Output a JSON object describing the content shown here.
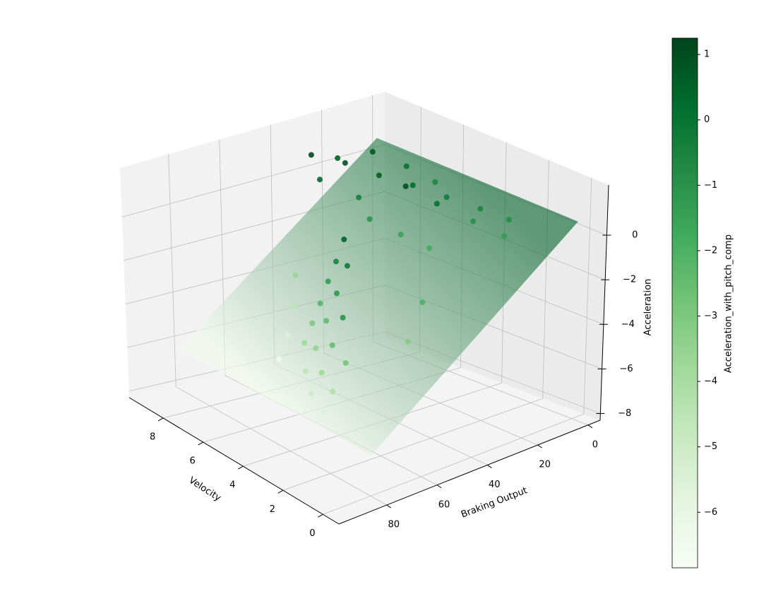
{
  "chart_data": {
    "type": "scatter3d",
    "xlabel": "Velocity",
    "ylabel": "Braking Output",
    "zlabel": "Acceleration",
    "x": [
      8,
      7,
      6,
      5,
      4,
      3,
      8.5,
      7.5,
      6.5,
      5.5,
      4.5,
      3.5,
      2.5,
      9,
      8,
      7,
      6,
      5,
      4,
      9.2,
      6.5,
      6.4,
      6.3,
      6.2,
      6.1,
      6.0,
      5.5,
      5.4,
      5.3,
      5.2,
      5.1,
      4.5,
      4.4,
      4.3,
      4.2,
      3.5,
      3.4,
      3.3,
      7.5,
      7.2,
      7.0,
      8,
      2.5,
      2.2
    ],
    "y": [
      25,
      20,
      15,
      10,
      5,
      2,
      10,
      5,
      2,
      22,
      18,
      12,
      8,
      30,
      35,
      28,
      32,
      28,
      25,
      18,
      38,
      42,
      46,
      50,
      54,
      58,
      45,
      50,
      55,
      60,
      65,
      55,
      60,
      65,
      70,
      62,
      68,
      72,
      50,
      55,
      60,
      45,
      40,
      48
    ],
    "z": [
      0.8,
      0.5,
      0.3,
      0.0,
      -0.3,
      -0.5,
      0.6,
      0.2,
      -0.2,
      0.7,
      0.2,
      -0.4,
      -0.8,
      0.9,
      0.4,
      -0.2,
      -0.6,
      -1.0,
      -1.3,
      0.3,
      -1.5,
      -2.3,
      -3.0,
      -3.8,
      -4.5,
      -5.2,
      -2.0,
      -3.0,
      -4.0,
      -5.0,
      -5.8,
      -3.5,
      -4.5,
      -5.5,
      -6.2,
      -4.8,
      -5.8,
      -6.5,
      -4.5,
      -5.5,
      -6.3,
      -3.5,
      -2.5,
      -3.8
    ],
    "color_values": [
      0.9,
      0.6,
      0.2,
      -0.3,
      -0.5,
      -0.8,
      0.7,
      0.0,
      -0.6,
      1.0,
      0.1,
      -0.9,
      -1.3,
      1.1,
      0.3,
      -0.4,
      -1.0,
      -1.5,
      -1.8,
      0.5,
      0.5,
      -0.5,
      -1.3,
      -2.2,
      -3.0,
      -3.8,
      -0.2,
      -1.2,
      -2.4,
      -3.5,
      -4.6,
      -1.0,
      -2.5,
      -3.8,
      -5.0,
      -2.8,
      -4.2,
      -5.5,
      -4.5,
      -5.6,
      -6.4,
      -3.6,
      -2.0,
      -3.2
    ],
    "surface": {
      "x": [
        0,
        9.5
      ],
      "y": [
        0,
        80
      ],
      "z": [
        [
          0.5,
          -6.5
        ],
        [
          0.5,
          -6.5
        ]
      ]
    },
    "xlim": [
      -0.8,
      9.7
    ],
    "ylim": [
      -4.8,
      99
    ],
    "zlim": [
      -8.3,
      2.25
    ],
    "xticks": [
      0,
      2,
      4,
      6,
      8
    ],
    "yticks": [
      0,
      20,
      40,
      60,
      80
    ],
    "zticks": [
      {
        "value": -8,
        "label": "−8"
      },
      {
        "value": -6,
        "label": "−6"
      },
      {
        "value": -4,
        "label": "−4"
      },
      {
        "value": -2,
        "label": "−2"
      },
      0
    ],
    "colormap": [
      "#f7fcf5",
      "#e5f5e0",
      "#c7e9c0",
      "#a1d99b",
      "#74c476",
      "#41ab5d",
      "#238b45",
      "#006d2c",
      "#00441b"
    ],
    "colorbar": {
      "label": "Acceleration_with_pitch_comp",
      "lim": [
        -6.85,
        1.25
      ],
      "ticks": [
        {
          "value": -6,
          "label": "−6"
        },
        {
          "value": -5,
          "label": "−5"
        },
        {
          "value": -4,
          "label": "−4"
        },
        {
          "value": -3,
          "label": "−3"
        },
        {
          "value": -2,
          "label": "−2"
        },
        {
          "value": -1,
          "label": "−1"
        },
        0,
        1
      ]
    }
  }
}
